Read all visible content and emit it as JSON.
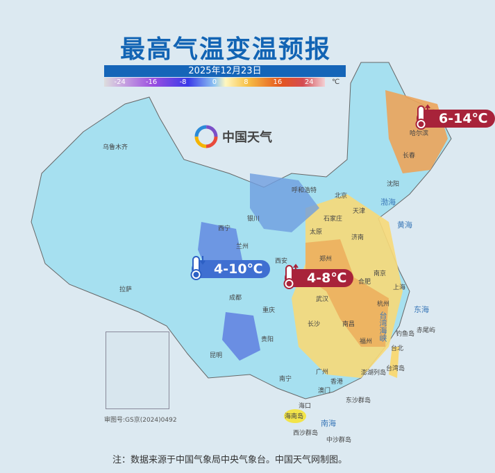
{
  "title": "最高气温变温预报",
  "date": "2025年12月23日",
  "legend": {
    "ticks": [
      "-24",
      "-16",
      "-8",
      "0",
      "8",
      "16",
      "24"
    ],
    "unit": "℃",
    "colors": [
      "#c9a8e0",
      "#9c4fe0",
      "#3a3ae8",
      "#8fc6f2",
      "#f7c046",
      "#e4561e",
      "#d44c52"
    ]
  },
  "logo": {
    "text": "中国天气"
  },
  "badges": [
    {
      "text": "6-14℃",
      "direction": "up",
      "color": "#a8233a"
    },
    {
      "text": "4-10℃",
      "direction": "down",
      "color": "#3f6fd1"
    },
    {
      "text": "4-8℃",
      "direction": "up",
      "color": "#a8233a"
    }
  ],
  "cities": [
    "乌鲁木齐",
    "拉萨",
    "西宁",
    "兰州",
    "银川",
    "呼和浩特",
    "北京",
    "天津",
    "石家庄",
    "太原",
    "济南",
    "沈阳",
    "长春",
    "哈尔滨",
    "西安",
    "郑州",
    "合肥",
    "南京",
    "上海",
    "杭州",
    "武汉",
    "成都",
    "重庆",
    "长沙",
    "南昌",
    "贵阳",
    "昆明",
    "福州",
    "台北",
    "南宁",
    "广州",
    "香港",
    "澳门",
    "海口",
    "海南岛",
    "台湾岛",
    "澎湖列岛",
    "东沙群岛",
    "钓鱼岛",
    "赤尾屿",
    "西沙群岛",
    "中沙群岛"
  ],
  "seas": [
    "渤海",
    "黄海",
    "东海",
    "台湾海峡",
    "南海"
  ],
  "approval": "审图号:GS京(2024)0492",
  "note": "注：数据来源于中国气象局中央气象台。中国天气网制图。"
}
